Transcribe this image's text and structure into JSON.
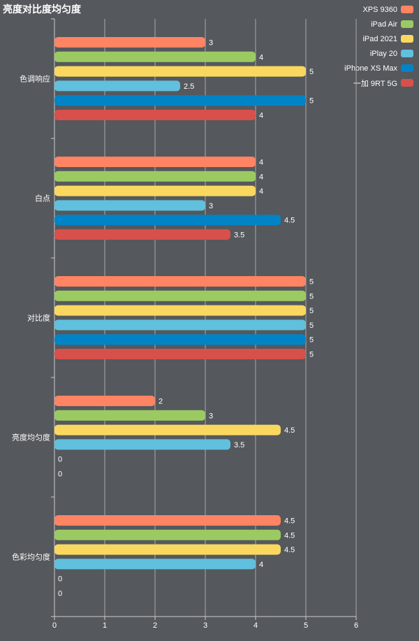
{
  "chart_data": {
    "type": "bar",
    "orientation": "horizontal",
    "title": "亮度对比度均匀度",
    "categories": [
      "色调响应",
      "白点",
      "对比度",
      "亮度均匀度",
      "色彩均匀度"
    ],
    "series": [
      {
        "name": "XPS 9360",
        "color": "#fe8463",
        "values": [
          3,
          4,
          5,
          2,
          4.5
        ]
      },
      {
        "name": "iPad Air",
        "color": "#9bca63",
        "values": [
          4,
          4,
          5,
          3,
          4.5
        ]
      },
      {
        "name": "iPad 2021",
        "color": "#fad860",
        "values": [
          5,
          4,
          5,
          4.5,
          4.5
        ]
      },
      {
        "name": "iPlay 20",
        "color": "#60c0dd",
        "values": [
          2.5,
          3,
          5,
          3.5,
          4
        ]
      },
      {
        "name": "iPhone XS Max",
        "color": "#0084c6",
        "values": [
          5,
          4.5,
          5,
          0,
          0
        ]
      },
      {
        "name": "一加 9RT 5G",
        "color": "#d7504b",
        "values": [
          4,
          3.5,
          5,
          0,
          0
        ]
      }
    ],
    "xlim": [
      0,
      6
    ],
    "xticks": [
      0,
      1,
      2,
      3,
      4,
      5,
      6
    ],
    "grid": true,
    "legend": "top-right"
  }
}
